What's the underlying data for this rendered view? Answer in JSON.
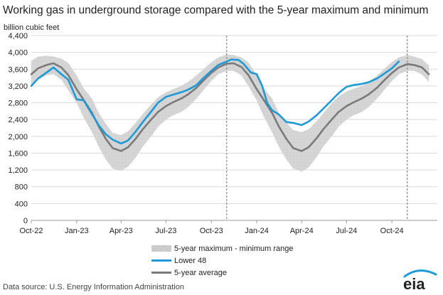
{
  "title": "Working gas in underground  storage compared with the 5-year maximum and minimum",
  "unit_label": "billion cubic feet",
  "legend": {
    "range": "5-year maximum - minimum range",
    "lower48": "Lower 48",
    "avg": "5-year average"
  },
  "source": "Data source:  U.S. Energy Information Administration",
  "logo_text": "eia",
  "colors": {
    "lower48": "#1e9ad6",
    "average": "#7a7a7a",
    "range": "#d3d3d3",
    "grid": "#d9d9d9"
  },
  "chart_data": {
    "type": "area",
    "title": "Working gas in underground  storage compared with the 5-year maximum and minimum",
    "ylabel": "billion cubic feet",
    "ylim": [
      0,
      4400
    ],
    "xlim": [
      "2022-10-01",
      "2025-01-01"
    ],
    "yticks": [
      "0",
      "400",
      "800",
      "1,200",
      "1,600",
      "2,000",
      "2,400",
      "2,800",
      "3,200",
      "3,600",
      "4,000",
      "4,400"
    ],
    "xticks": [
      {
        "date": "2022-10-01",
        "label": "Oct-22"
      },
      {
        "date": "2023-01-01",
        "label": "Jan-23"
      },
      {
        "date": "2023-04-01",
        "label": "Apr-23"
      },
      {
        "date": "2023-07-01",
        "label": "Jul-23"
      },
      {
        "date": "2023-10-01",
        "label": "Oct-23"
      },
      {
        "date": "2024-01-01",
        "label": "Jan-24"
      },
      {
        "date": "2024-04-01",
        "label": "Apr-24"
      },
      {
        "date": "2024-07-01",
        "label": "Jul-24"
      },
      {
        "date": "2024-10-01",
        "label": "Oct-24"
      }
    ],
    "vlines": [
      "2023-11-01",
      "2024-11-01"
    ],
    "series": [
      {
        "name": "Lower 48",
        "points": [
          [
            "2022-10-01",
            3200
          ],
          [
            "2022-10-15",
            3380
          ],
          [
            "2022-11-01",
            3520
          ],
          [
            "2022-11-15",
            3640
          ],
          [
            "2022-12-01",
            3480
          ],
          [
            "2022-12-15",
            3350
          ],
          [
            "2023-01-01",
            2880
          ],
          [
            "2023-01-15",
            2860
          ],
          [
            "2023-02-01",
            2530
          ],
          [
            "2023-02-15",
            2260
          ],
          [
            "2023-03-01",
            2050
          ],
          [
            "2023-03-15",
            1920
          ],
          [
            "2023-04-01",
            1830
          ],
          [
            "2023-04-15",
            1900
          ],
          [
            "2023-05-01",
            2120
          ],
          [
            "2023-05-15",
            2340
          ],
          [
            "2023-06-01",
            2590
          ],
          [
            "2023-06-15",
            2800
          ],
          [
            "2023-07-01",
            2940
          ],
          [
            "2023-07-15",
            2990
          ],
          [
            "2023-08-01",
            3050
          ],
          [
            "2023-08-15",
            3110
          ],
          [
            "2023-09-01",
            3220
          ],
          [
            "2023-09-15",
            3390
          ],
          [
            "2023-10-01",
            3560
          ],
          [
            "2023-10-15",
            3700
          ],
          [
            "2023-11-01",
            3780
          ],
          [
            "2023-11-10",
            3830
          ],
          [
            "2023-11-25",
            3820
          ],
          [
            "2023-12-05",
            3730
          ],
          [
            "2023-12-20",
            3520
          ],
          [
            "2024-01-01",
            3480
          ],
          [
            "2024-01-12",
            3200
          ],
          [
            "2024-01-22",
            2800
          ],
          [
            "2024-02-01",
            2620
          ],
          [
            "2024-02-15",
            2520
          ],
          [
            "2024-03-01",
            2340
          ],
          [
            "2024-03-15",
            2320
          ],
          [
            "2024-04-01",
            2270
          ],
          [
            "2024-04-15",
            2350
          ],
          [
            "2024-05-01",
            2500
          ],
          [
            "2024-05-15",
            2660
          ],
          [
            "2024-06-01",
            2860
          ],
          [
            "2024-06-15",
            3030
          ],
          [
            "2024-07-01",
            3180
          ],
          [
            "2024-07-15",
            3220
          ],
          [
            "2024-08-01",
            3250
          ],
          [
            "2024-08-15",
            3290
          ],
          [
            "2024-09-01",
            3380
          ],
          [
            "2024-09-15",
            3490
          ],
          [
            "2024-10-01",
            3620
          ],
          [
            "2024-10-15",
            3780
          ]
        ]
      },
      {
        "name": "5-year average",
        "points": [
          [
            "2022-10-01",
            3480
          ],
          [
            "2022-10-15",
            3620
          ],
          [
            "2022-11-01",
            3700
          ],
          [
            "2022-11-15",
            3740
          ],
          [
            "2022-12-01",
            3640
          ],
          [
            "2022-12-15",
            3460
          ],
          [
            "2023-01-01",
            3120
          ],
          [
            "2023-01-15",
            2870
          ],
          [
            "2023-02-01",
            2560
          ],
          [
            "2023-02-15",
            2230
          ],
          [
            "2023-03-01",
            1940
          ],
          [
            "2023-03-15",
            1720
          ],
          [
            "2023-04-01",
            1650
          ],
          [
            "2023-04-15",
            1740
          ],
          [
            "2023-05-01",
            1950
          ],
          [
            "2023-05-15",
            2170
          ],
          [
            "2023-06-01",
            2400
          ],
          [
            "2023-06-15",
            2580
          ],
          [
            "2023-07-01",
            2720
          ],
          [
            "2023-07-15",
            2810
          ],
          [
            "2023-08-01",
            2900
          ],
          [
            "2023-08-15",
            3000
          ],
          [
            "2023-09-01",
            3160
          ],
          [
            "2023-09-15",
            3330
          ],
          [
            "2023-10-01",
            3510
          ],
          [
            "2023-10-15",
            3640
          ],
          [
            "2023-11-01",
            3730
          ],
          [
            "2023-11-15",
            3740
          ],
          [
            "2023-12-01",
            3650
          ],
          [
            "2023-12-15",
            3460
          ],
          [
            "2024-01-01",
            3120
          ],
          [
            "2024-01-15",
            2870
          ],
          [
            "2024-02-01",
            2560
          ],
          [
            "2024-02-15",
            2230
          ],
          [
            "2024-03-01",
            1940
          ],
          [
            "2024-03-15",
            1720
          ],
          [
            "2024-04-01",
            1650
          ],
          [
            "2024-04-15",
            1740
          ],
          [
            "2024-05-01",
            1950
          ],
          [
            "2024-05-15",
            2170
          ],
          [
            "2024-06-01",
            2400
          ],
          [
            "2024-06-15",
            2580
          ],
          [
            "2024-07-01",
            2720
          ],
          [
            "2024-07-15",
            2810
          ],
          [
            "2024-08-01",
            2900
          ],
          [
            "2024-08-15",
            3000
          ],
          [
            "2024-09-01",
            3160
          ],
          [
            "2024-09-15",
            3330
          ],
          [
            "2024-10-01",
            3510
          ],
          [
            "2024-10-15",
            3640
          ],
          [
            "2024-11-01",
            3720
          ],
          [
            "2024-11-15",
            3700
          ],
          [
            "2024-12-01",
            3640
          ],
          [
            "2024-12-15",
            3480
          ]
        ]
      }
    ],
    "range": {
      "name": "5-year maximum - minimum range",
      "max": [
        [
          "2022-10-01",
          3800
        ],
        [
          "2022-10-15",
          3900
        ],
        [
          "2022-11-01",
          3920
        ],
        [
          "2022-11-15",
          3900
        ],
        [
          "2022-12-01",
          3850
        ],
        [
          "2022-12-15",
          3750
        ],
        [
          "2023-01-01",
          3450
        ],
        [
          "2023-01-15",
          3150
        ],
        [
          "2023-02-01",
          2900
        ],
        [
          "2023-02-15",
          2550
        ],
        [
          "2023-03-01",
          2300
        ],
        [
          "2023-03-15",
          2080
        ],
        [
          "2023-04-01",
          2030
        ],
        [
          "2023-04-15",
          2120
        ],
        [
          "2023-05-01",
          2330
        ],
        [
          "2023-05-15",
          2530
        ],
        [
          "2023-06-01",
          2760
        ],
        [
          "2023-06-15",
          2930
        ],
        [
          "2023-07-01",
          3050
        ],
        [
          "2023-07-15",
          3120
        ],
        [
          "2023-08-01",
          3200
        ],
        [
          "2023-08-15",
          3300
        ],
        [
          "2023-09-01",
          3450
        ],
        [
          "2023-09-15",
          3600
        ],
        [
          "2023-10-01",
          3760
        ],
        [
          "2023-10-15",
          3880
        ],
        [
          "2023-11-01",
          3950
        ],
        [
          "2023-11-15",
          3940
        ],
        [
          "2023-12-01",
          3880
        ],
        [
          "2023-12-15",
          3760
        ],
        [
          "2024-01-01",
          3450
        ],
        [
          "2024-01-15",
          3150
        ],
        [
          "2024-02-01",
          2900
        ],
        [
          "2024-02-15",
          2550
        ],
        [
          "2024-03-01",
          2330
        ],
        [
          "2024-03-15",
          2150
        ],
        [
          "2024-04-01",
          2100
        ],
        [
          "2024-04-15",
          2170
        ],
        [
          "2024-05-01",
          2350
        ],
        [
          "2024-05-15",
          2550
        ],
        [
          "2024-06-01",
          2790
        ],
        [
          "2024-06-15",
          2950
        ],
        [
          "2024-07-01",
          3070
        ],
        [
          "2024-07-15",
          3130
        ],
        [
          "2024-08-01",
          3200
        ],
        [
          "2024-08-15",
          3300
        ],
        [
          "2024-09-01",
          3450
        ],
        [
          "2024-09-15",
          3600
        ],
        [
          "2024-10-01",
          3770
        ],
        [
          "2024-10-15",
          3880
        ],
        [
          "2024-11-01",
          3940
        ],
        [
          "2024-11-15",
          3900
        ],
        [
          "2024-12-01",
          3840
        ],
        [
          "2024-12-15",
          3680
        ]
      ],
      "min": [
        [
          "2022-10-01",
          3200
        ],
        [
          "2022-10-15",
          3350
        ],
        [
          "2022-11-01",
          3450
        ],
        [
          "2022-11-15",
          3480
        ],
        [
          "2022-12-01",
          3350
        ],
        [
          "2022-12-15",
          3100
        ],
        [
          "2023-01-01",
          2800
        ],
        [
          "2023-01-15",
          2450
        ],
        [
          "2023-02-01",
          2100
        ],
        [
          "2023-02-15",
          1750
        ],
        [
          "2023-03-01",
          1450
        ],
        [
          "2023-03-15",
          1230
        ],
        [
          "2023-04-01",
          1180
        ],
        [
          "2023-04-15",
          1280
        ],
        [
          "2023-05-01",
          1500
        ],
        [
          "2023-05-15",
          1760
        ],
        [
          "2023-06-01",
          2000
        ],
        [
          "2023-06-15",
          2230
        ],
        [
          "2023-07-01",
          2400
        ],
        [
          "2023-07-15",
          2500
        ],
        [
          "2023-08-01",
          2580
        ],
        [
          "2023-08-15",
          2700
        ],
        [
          "2023-09-01",
          2900
        ],
        [
          "2023-09-15",
          3100
        ],
        [
          "2023-10-01",
          3320
        ],
        [
          "2023-10-15",
          3480
        ],
        [
          "2023-11-01",
          3560
        ],
        [
          "2023-11-15",
          3560
        ],
        [
          "2023-12-01",
          3450
        ],
        [
          "2023-12-15",
          3200
        ],
        [
          "2024-01-01",
          2850
        ],
        [
          "2024-01-15",
          2480
        ],
        [
          "2024-02-01",
          2100
        ],
        [
          "2024-02-15",
          1750
        ],
        [
          "2024-03-01",
          1450
        ],
        [
          "2024-03-15",
          1230
        ],
        [
          "2024-04-01",
          1160
        ],
        [
          "2024-04-15",
          1260
        ],
        [
          "2024-05-01",
          1500
        ],
        [
          "2024-05-15",
          1760
        ],
        [
          "2024-06-01",
          2000
        ],
        [
          "2024-06-15",
          2230
        ],
        [
          "2024-07-01",
          2400
        ],
        [
          "2024-07-15",
          2500
        ],
        [
          "2024-08-01",
          2580
        ],
        [
          "2024-08-15",
          2700
        ],
        [
          "2024-09-01",
          2900
        ],
        [
          "2024-09-15",
          3100
        ],
        [
          "2024-10-01",
          3320
        ],
        [
          "2024-10-15",
          3480
        ],
        [
          "2024-11-01",
          3560
        ],
        [
          "2024-11-15",
          3560
        ],
        [
          "2024-12-01",
          3470
        ],
        [
          "2024-12-15",
          3300
        ]
      ]
    }
  }
}
